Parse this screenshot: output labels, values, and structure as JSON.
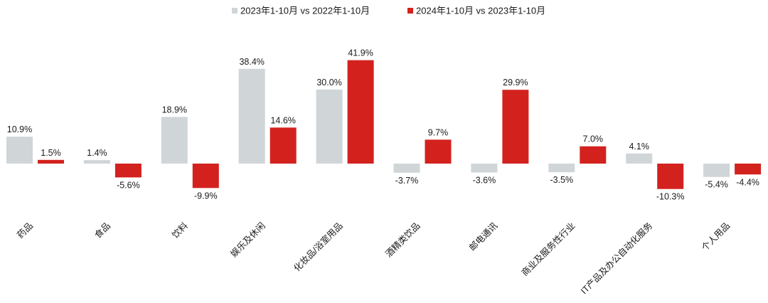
{
  "chart_data": {
    "type": "bar",
    "categories": [
      "药品",
      "食品",
      "饮料",
      "娱乐及休闲",
      "化妆品/浴室用品",
      "酒精类饮品",
      "邮电通讯",
      "商业及服务性行业",
      "IT产品及办公自动化服务",
      "个人用品"
    ],
    "series": [
      {
        "name": "2023年1-10月 vs 2022年1-10月",
        "color": "#d0d5d8",
        "values": [
          10.9,
          1.4,
          18.9,
          38.4,
          30.0,
          -3.7,
          -3.6,
          -3.5,
          4.1,
          -5.4
        ],
        "labels": [
          "10.9%",
          "1.4%",
          "18.9%",
          "38.4%",
          "30.0%",
          "-3.7%",
          "-3.6%",
          "-3.5%",
          "4.1%",
          "-5.4%"
        ]
      },
      {
        "name": "2024年1-10月 vs 2023年1-10月",
        "color": "#d3221e",
        "values": [
          1.5,
          -5.6,
          -9.9,
          14.6,
          41.9,
          9.7,
          29.9,
          7.0,
          -10.3,
          -4.4
        ],
        "labels": [
          "1.5%",
          "-5.6%",
          "-9.9%",
          "14.6%",
          "41.9%",
          "9.7%",
          "29.9%",
          "7.0%",
          "-10.3%",
          "-4.4%"
        ]
      }
    ],
    "legend_position": "top-center",
    "grid": false,
    "ylim": [
      -12,
      42
    ]
  }
}
